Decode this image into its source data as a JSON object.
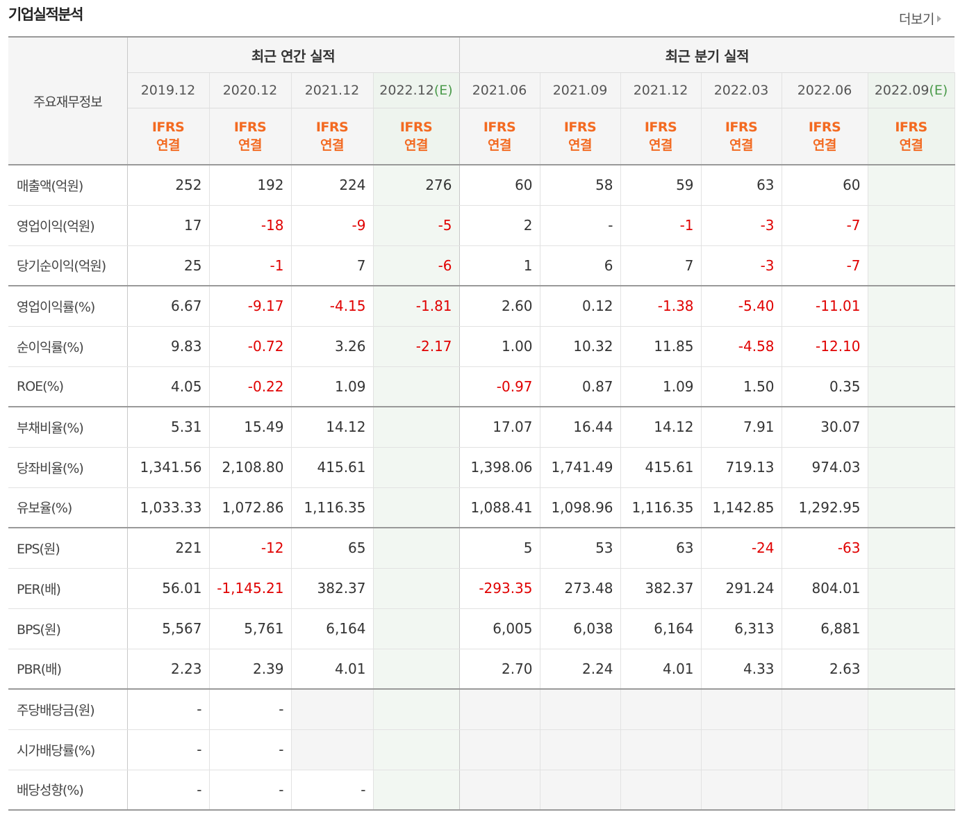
{
  "title": "기업실적분석",
  "more_label": "더보기",
  "header": {
    "row_label": "주요재무정보",
    "annual_label": "최근 연간 실적",
    "quarterly_label": "최근 분기 실적",
    "annual_periods": [
      {
        "date": "2019.12",
        "est": ""
      },
      {
        "date": "2020.12",
        "est": ""
      },
      {
        "date": "2021.12",
        "est": ""
      },
      {
        "date": "2022.12",
        "est": "(E)"
      }
    ],
    "quarterly_periods": [
      {
        "date": "2021.06",
        "est": ""
      },
      {
        "date": "2021.09",
        "est": ""
      },
      {
        "date": "2021.12",
        "est": ""
      },
      {
        "date": "2022.03",
        "est": ""
      },
      {
        "date": "2022.06",
        "est": ""
      },
      {
        "date": "2022.09",
        "est": "(E)"
      }
    ],
    "ifrs_line1": "IFRS",
    "ifrs_line2": "연결"
  },
  "rows": [
    {
      "label": "매출액(억원)",
      "values": [
        "252",
        "192",
        "224",
        "276",
        "60",
        "58",
        "59",
        "63",
        "60",
        ""
      ]
    },
    {
      "label": "영업이익(억원)",
      "values": [
        "17",
        "-18",
        "-9",
        "-5",
        "2",
        "-",
        "-1",
        "-3",
        "-7",
        ""
      ]
    },
    {
      "label": "당기순이익(억원)",
      "values": [
        "25",
        "-1",
        "7",
        "-6",
        "1",
        "6",
        "7",
        "-3",
        "-7",
        ""
      ]
    },
    {
      "label": "영업이익률(%)",
      "values": [
        "6.67",
        "-9.17",
        "-4.15",
        "-1.81",
        "2.60",
        "0.12",
        "-1.38",
        "-5.40",
        "-11.01",
        ""
      ]
    },
    {
      "label": "순이익률(%)",
      "values": [
        "9.83",
        "-0.72",
        "3.26",
        "-2.17",
        "1.00",
        "10.32",
        "11.85",
        "-4.58",
        "-12.10",
        ""
      ]
    },
    {
      "label": "ROE(%)",
      "values": [
        "4.05",
        "-0.22",
        "1.09",
        "",
        "-0.97",
        "0.87",
        "1.09",
        "1.50",
        "0.35",
        ""
      ]
    },
    {
      "label": "부채비율(%)",
      "values": [
        "5.31",
        "15.49",
        "14.12",
        "",
        "17.07",
        "16.44",
        "14.12",
        "7.91",
        "30.07",
        ""
      ]
    },
    {
      "label": "당좌비율(%)",
      "values": [
        "1,341.56",
        "2,108.80",
        "415.61",
        "",
        "1,398.06",
        "1,741.49",
        "415.61",
        "719.13",
        "974.03",
        ""
      ]
    },
    {
      "label": "유보율(%)",
      "values": [
        "1,033.33",
        "1,072.86",
        "1,116.35",
        "",
        "1,088.41",
        "1,098.96",
        "1,116.35",
        "1,142.85",
        "1,292.95",
        ""
      ]
    },
    {
      "label": "EPS(원)",
      "values": [
        "221",
        "-12",
        "65",
        "",
        "5",
        "53",
        "63",
        "-24",
        "-63",
        ""
      ]
    },
    {
      "label": "PER(배)",
      "values": [
        "56.01",
        "-1,145.21",
        "382.37",
        "",
        "-293.35",
        "273.48",
        "382.37",
        "291.24",
        "804.01",
        ""
      ]
    },
    {
      "label": "BPS(원)",
      "values": [
        "5,567",
        "5,761",
        "6,164",
        "",
        "6,005",
        "6,038",
        "6,164",
        "6,313",
        "6,881",
        ""
      ]
    },
    {
      "label": "PBR(배)",
      "values": [
        "2.23",
        "2.39",
        "4.01",
        "",
        "2.70",
        "2.24",
        "4.01",
        "4.33",
        "2.63",
        ""
      ]
    },
    {
      "label": "주당배당금(원)",
      "values": [
        "-",
        "-",
        "",
        "",
        "",
        "",
        "",
        "",
        "",
        ""
      ]
    },
    {
      "label": "시가배당률(%)",
      "values": [
        "-",
        "-",
        "",
        "",
        "",
        "",
        "",
        "",
        "",
        ""
      ]
    },
    {
      "label": "배당성향(%)",
      "values": [
        "-",
        "-",
        "-",
        "",
        "",
        "",
        "",
        "",
        "",
        ""
      ]
    }
  ],
  "group_ends": [
    2,
    5,
    8,
    12
  ],
  "empty_cells": [
    [
      13,
      2
    ],
    [
      13,
      4
    ],
    [
      13,
      5
    ],
    [
      13,
      6
    ],
    [
      13,
      7
    ],
    [
      13,
      8
    ],
    [
      14,
      2
    ],
    [
      14,
      4
    ],
    [
      14,
      5
    ],
    [
      14,
      6
    ],
    [
      14,
      7
    ],
    [
      14,
      8
    ],
    [
      15,
      4
    ],
    [
      15,
      5
    ],
    [
      15,
      6
    ],
    [
      15,
      7
    ],
    [
      15,
      8
    ]
  ],
  "colors": {
    "negative": "#e00000",
    "ifrs": "#f36a21",
    "estimate": "#4a9a4a",
    "header_bg": "#f5f5f5",
    "estimate_bg": "#f2f7f2"
  }
}
